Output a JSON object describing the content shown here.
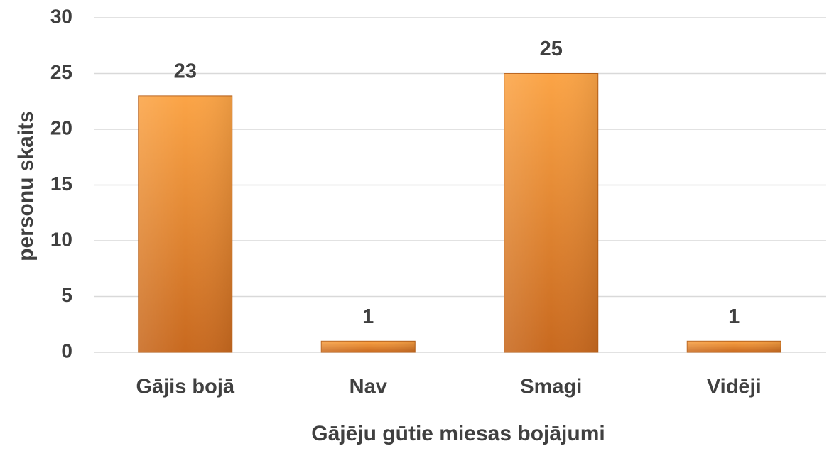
{
  "chart_data": {
    "type": "bar",
    "x_label": "Gājēju gūtie miesas bojājumi",
    "y_label": "personu skaits",
    "categories": [
      "Gājis bojā",
      "Nav",
      "Smagi",
      "Vidēji"
    ],
    "values": [
      23,
      1,
      25,
      1
    ],
    "color": "#f7962f",
    "ylim": [
      0,
      30
    ],
    "yticks": [
      0,
      5,
      10,
      15,
      20,
      25,
      30
    ],
    "grid": true
  }
}
